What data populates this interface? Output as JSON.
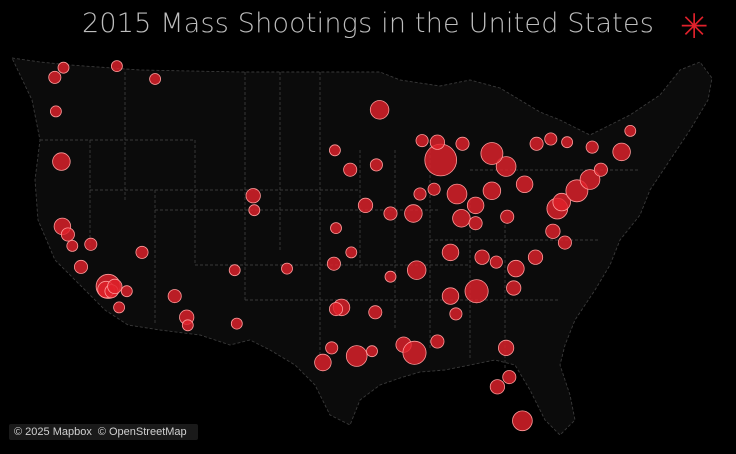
{
  "title": "2015 Mass Shootings in the United States",
  "menu_icon": "asterisk-icon",
  "attribution": {
    "mapbox": "© 2025 Mapbox",
    "osm": "© OpenStreetMap"
  },
  "colors": {
    "background": "#000000",
    "land": "#0b0b0b",
    "state_lines": "#3a3a3a",
    "marker_fill": "#e0212b",
    "marker_stroke": "#ff9a9a",
    "accent": "#e0212b"
  },
  "map_data": {
    "type": "proportional-symbol-map",
    "region": "United States",
    "note": "points are [longitude, latitude, relative size]",
    "points": [
      [
        -122.3,
        47.6,
        1
      ],
      [
        -117.4,
        47.7,
        1
      ],
      [
        -123.0,
        44.9,
        1
      ],
      [
        -122.5,
        41.8,
        1.6
      ],
      [
        -113.9,
        46.9,
        1
      ],
      [
        -106.6,
        35.1,
        1
      ],
      [
        -122.4,
        37.8,
        1.5
      ],
      [
        -121.9,
        37.3,
        1.2
      ],
      [
        -121.5,
        36.6,
        1
      ],
      [
        -120.7,
        35.3,
        1.2
      ],
      [
        -119.8,
        36.7,
        1.1
      ],
      [
        -118.2,
        34.1,
        2.2
      ],
      [
        -118.4,
        33.9,
        1.5
      ],
      [
        -117.9,
        33.8,
        1.2
      ],
      [
        -117.2,
        32.8,
        1
      ],
      [
        -115.1,
        36.2,
        1.1
      ],
      [
        -112.1,
        33.5,
        1.2
      ],
      [
        -111.0,
        32.2,
        1.3
      ],
      [
        -110.9,
        31.7,
        1
      ],
      [
        -104.9,
        39.7,
        1.3
      ],
      [
        -104.8,
        38.8,
        1
      ],
      [
        -106.4,
        31.8,
        1
      ],
      [
        -101.8,
        35.2,
        1
      ],
      [
        -97.3,
        37.7,
        1
      ],
      [
        -97.5,
        35.5,
        1.2
      ],
      [
        -95.9,
        36.2,
        1
      ],
      [
        -96.8,
        32.8,
        1.5
      ],
      [
        -97.3,
        32.7,
        1.2
      ],
      [
        -95.4,
        29.8,
        1.9
      ],
      [
        -98.5,
        29.4,
        1.5
      ],
      [
        -97.7,
        30.3,
        1.1
      ],
      [
        -94.0,
        30.1,
        1
      ],
      [
        -93.7,
        32.5,
        1.2
      ],
      [
        -92.3,
        34.7,
        1
      ],
      [
        -91.1,
        30.5,
        1.4
      ],
      [
        -90.1,
        30.0,
        2.1
      ],
      [
        -89.9,
        35.1,
        1.7
      ],
      [
        -86.8,
        33.5,
        1.5
      ],
      [
        -86.3,
        32.4,
        1.1
      ],
      [
        -88.0,
        30.7,
        1.2
      ],
      [
        -84.4,
        33.8,
        2.1
      ],
      [
        -81.7,
        30.3,
        1.4
      ],
      [
        -82.5,
        27.9,
        1.3
      ],
      [
        -81.4,
        28.5,
        1.2
      ],
      [
        -80.2,
        25.8,
        1.8
      ],
      [
        -81.0,
        34.0,
        1.3
      ],
      [
        -80.8,
        35.2,
        1.5
      ],
      [
        -79.0,
        35.9,
        1.3
      ],
      [
        -77.4,
        37.5,
        1.3
      ],
      [
        -76.3,
        36.8,
        1.2
      ],
      [
        -77.0,
        38.9,
        1.9
      ],
      [
        -76.6,
        39.3,
        1.6
      ],
      [
        -75.2,
        40.0,
        2.0
      ],
      [
        -74.0,
        40.7,
        1.8
      ],
      [
        -73.0,
        41.3,
        1.2
      ],
      [
        -71.1,
        42.4,
        1.6
      ],
      [
        -70.3,
        43.7,
        1
      ],
      [
        -73.8,
        42.7,
        1.1
      ],
      [
        -76.1,
        43.0,
        1
      ],
      [
        -78.9,
        42.9,
        1.2
      ],
      [
        -80.0,
        40.4,
        1.5
      ],
      [
        -81.7,
        41.5,
        1.8
      ],
      [
        -83.0,
        40.0,
        1.6
      ],
      [
        -84.5,
        39.1,
        1.5
      ],
      [
        -83.0,
        42.3,
        2.0
      ],
      [
        -85.7,
        42.9,
        1.2
      ],
      [
        -87.7,
        41.9,
        2.9
      ],
      [
        -88.0,
        43.0,
        1.3
      ],
      [
        -89.4,
        43.1,
        1.1
      ],
      [
        -93.3,
        45.0,
        1.7
      ],
      [
        -93.6,
        41.6,
        1.1
      ],
      [
        -96.0,
        41.3,
        1.2
      ],
      [
        -94.6,
        39.1,
        1.3
      ],
      [
        -90.2,
        38.6,
        1.6
      ],
      [
        -86.2,
        39.8,
        1.8
      ],
      [
        -85.8,
        38.3,
        1.6
      ],
      [
        -86.8,
        36.2,
        1.5
      ],
      [
        -84.5,
        38.0,
        1.2
      ],
      [
        -83.9,
        35.9,
        1.3
      ],
      [
        -82.6,
        35.6,
        1.1
      ],
      [
        -81.6,
        38.4,
        1.2
      ],
      [
        -88.3,
        40.1,
        1.1
      ],
      [
        -89.6,
        39.8,
        1.1
      ],
      [
        -92.3,
        38.6,
        1.2
      ],
      [
        -97.4,
        42.5,
        1
      ],
      [
        -117.6,
        34.1,
        1.3
      ],
      [
        -116.5,
        33.8,
        1
      ],
      [
        -123.1,
        47.0,
        1.1
      ],
      [
        -77.6,
        43.2,
        1.1
      ]
    ]
  }
}
